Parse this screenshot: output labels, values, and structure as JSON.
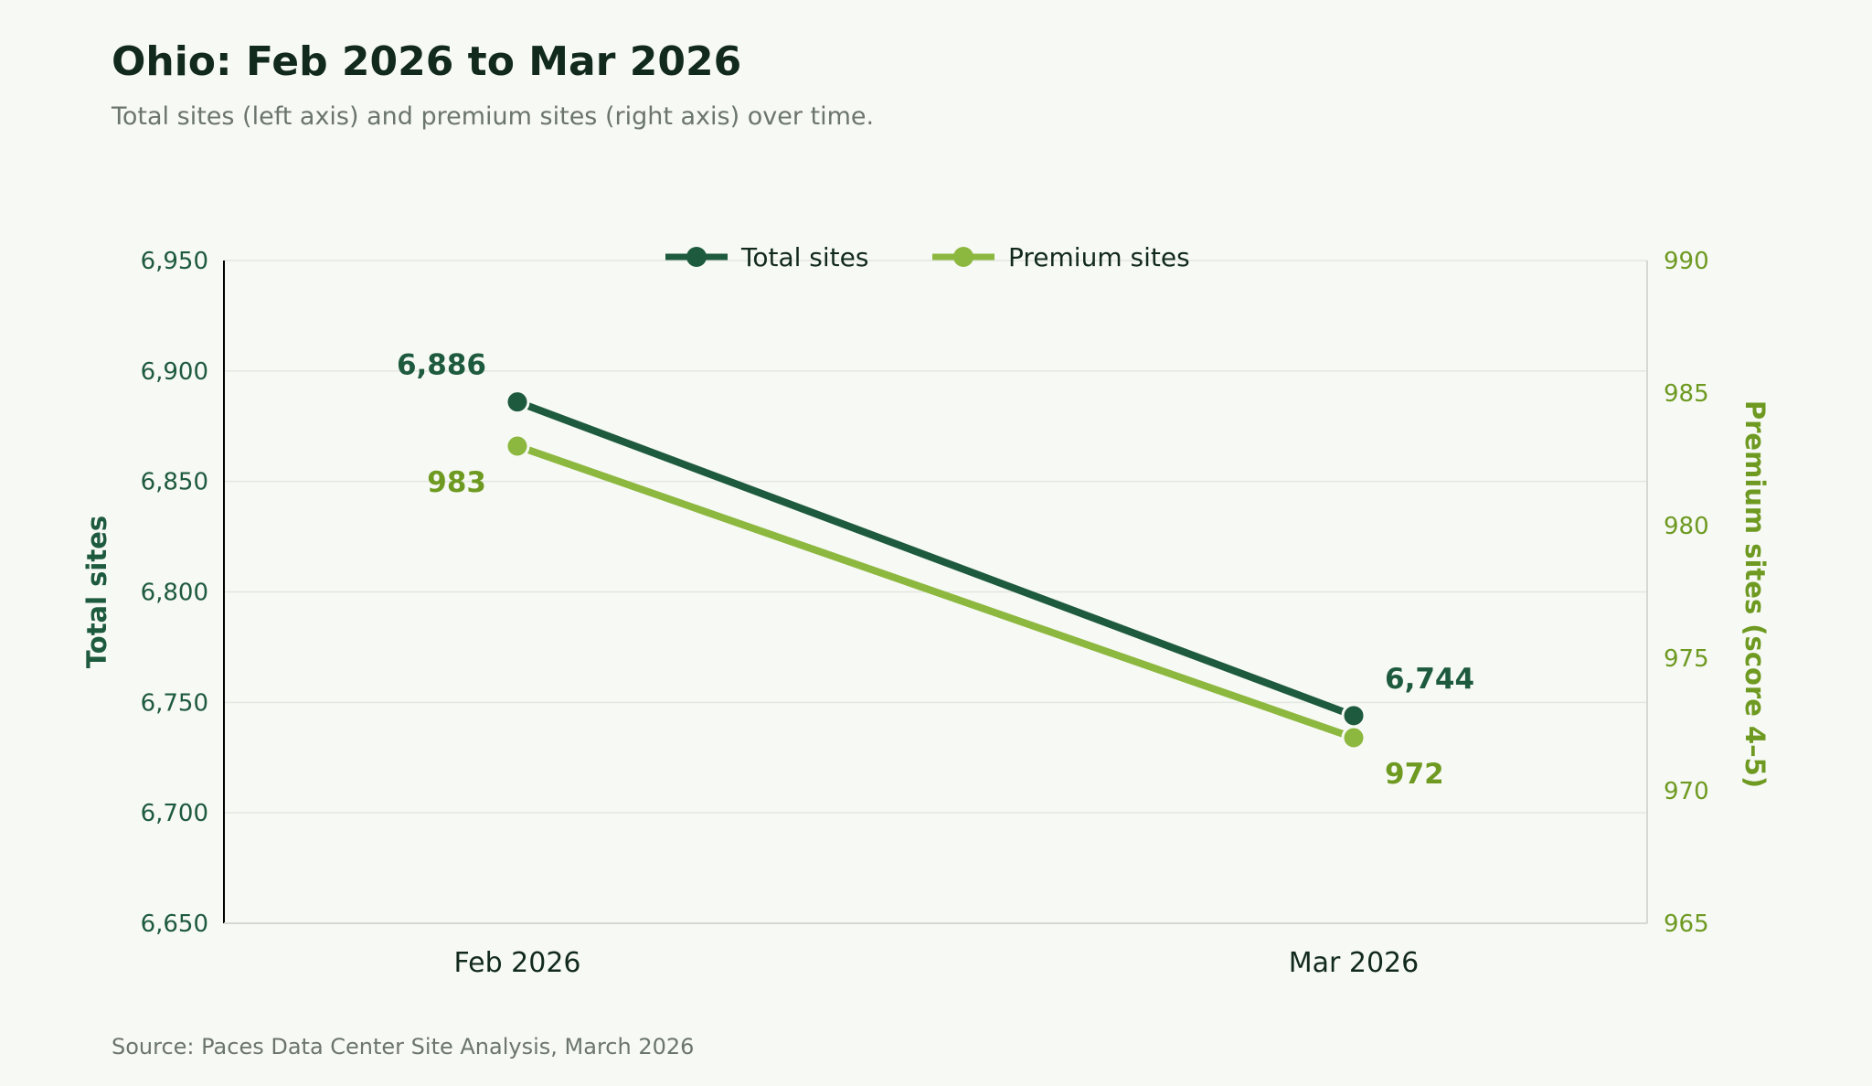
{
  "colors": {
    "background": "#f7f9f4",
    "title": "#122a1e",
    "muted": "#6b756d",
    "total": "#1e5a3e",
    "premium": "#8db840",
    "premium_text": "#6e9a22",
    "grid": "#e3e8e0"
  },
  "chart_data": {
    "type": "line",
    "title": "Ohio: Feb 2026 to Mar 2026",
    "subtitle": "Total sites (left axis) and premium sites (right axis) over time.",
    "source": "Source: Paces Data Center Site Analysis, March 2026",
    "categories": [
      "Feb 2026",
      "Mar 2026"
    ],
    "left_axis": {
      "label": "Total sites",
      "ylim": [
        6650,
        6950
      ],
      "ticks": [
        6650,
        6700,
        6750,
        6800,
        6850,
        6900,
        6950
      ],
      "tick_labels": [
        "6,650",
        "6,700",
        "6,750",
        "6,800",
        "6,850",
        "6,900",
        "6,950"
      ]
    },
    "right_axis": {
      "label": "Premium sites (score 4–5)",
      "ylim": [
        965,
        990
      ],
      "ticks": [
        965,
        970,
        975,
        980,
        985,
        990
      ],
      "tick_labels": [
        "965",
        "970",
        "975",
        "980",
        "985",
        "990"
      ]
    },
    "series": [
      {
        "name": "Total sites",
        "axis": "left",
        "values": [
          6886,
          6744
        ],
        "labels": [
          "6,886",
          "6,744"
        ]
      },
      {
        "name": "Premium sites",
        "axis": "right",
        "values": [
          983,
          972
        ],
        "labels": [
          "983",
          "972"
        ]
      }
    ],
    "legend": "top-center",
    "grid": true
  }
}
